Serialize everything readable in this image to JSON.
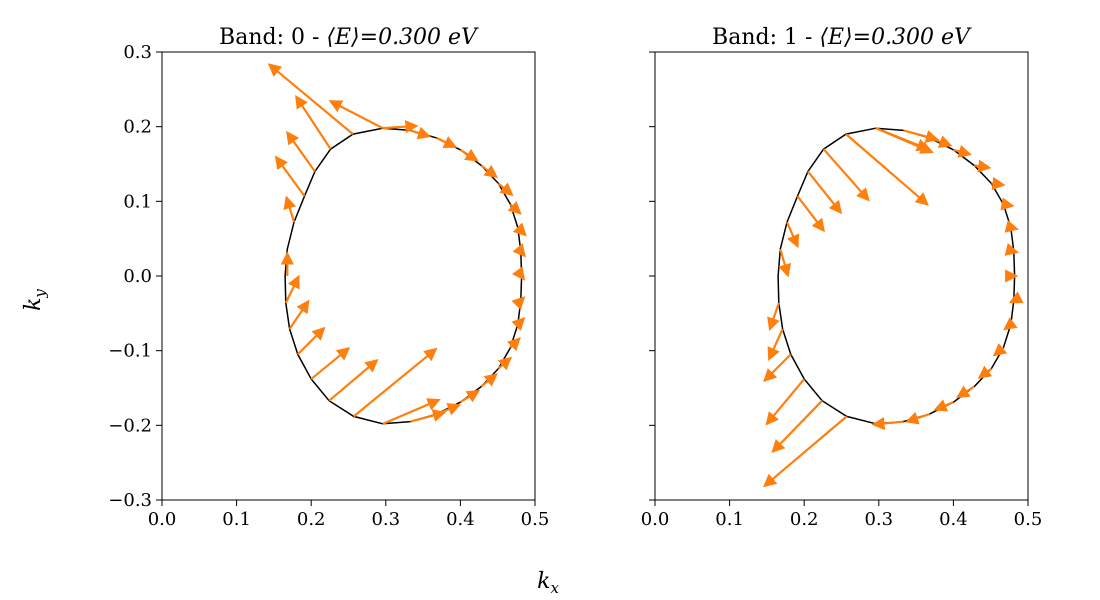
{
  "chart_data": {
    "type": "quiver",
    "xlabel": "k",
    "xlabel_sub": "x",
    "ylabel": "k",
    "ylabel_sub": "y",
    "xlim": [
      0.0,
      0.5
    ],
    "ylim": [
      -0.3,
      0.3
    ],
    "x_ticks": [
      "0.0",
      "0.1",
      "0.2",
      "0.3",
      "0.4",
      "0.5"
    ],
    "y_ticks": [
      "0.3",
      "0.2",
      "0.1",
      "0.0",
      "−0.1",
      "−0.2",
      "−0.3"
    ],
    "y_tick_values": [
      0.3,
      0.2,
      0.1,
      0.0,
      -0.1,
      -0.2,
      -0.3
    ],
    "x_tick_values": [
      0.0,
      0.1,
      0.2,
      0.3,
      0.4,
      0.5
    ],
    "grid": false,
    "contour_color": "#000000",
    "arrow_color": "#ff7f0e",
    "contour": [
      [
        0.296,
        0.198
      ],
      [
        0.333,
        0.195
      ],
      [
        0.368,
        0.185
      ],
      [
        0.4,
        0.169
      ],
      [
        0.428,
        0.148
      ],
      [
        0.451,
        0.124
      ],
      [
        0.467,
        0.096
      ],
      [
        0.477,
        0.065
      ],
      [
        0.481,
        0.033
      ],
      [
        0.482,
        0.0
      ],
      [
        0.481,
        -0.033
      ],
      [
        0.477,
        -0.065
      ],
      [
        0.467,
        -0.096
      ],
      [
        0.451,
        -0.124
      ],
      [
        0.428,
        -0.148
      ],
      [
        0.4,
        -0.169
      ],
      [
        0.368,
        -0.185
      ],
      [
        0.333,
        -0.195
      ],
      [
        0.296,
        -0.198
      ],
      [
        0.257,
        -0.188
      ],
      [
        0.224,
        -0.167
      ],
      [
        0.2,
        -0.138
      ],
      [
        0.182,
        -0.105
      ],
      [
        0.171,
        -0.071
      ],
      [
        0.166,
        -0.036
      ],
      [
        0.165,
        0.0
      ],
      [
        0.168,
        0.036
      ],
      [
        0.177,
        0.072
      ],
      [
        0.191,
        0.107
      ],
      [
        0.205,
        0.14
      ],
      [
        0.226,
        0.17
      ],
      [
        0.256,
        0.19
      ]
    ],
    "panels": [
      {
        "title_prefix": "Band: 0 - ",
        "title_energy": "⟨E⟩=0.300 eV",
        "arrows": [
          [
            0.296,
            0.198,
            0.045,
            0.003
          ],
          [
            0.333,
            0.195,
            0.025,
            -0.008
          ],
          [
            0.368,
            0.185,
            0.025,
            -0.012
          ],
          [
            0.4,
            0.169,
            0.022,
            -0.014
          ],
          [
            0.428,
            0.148,
            0.02,
            -0.015
          ],
          [
            0.451,
            0.124,
            0.018,
            -0.015
          ],
          [
            0.467,
            0.096,
            0.013,
            -0.012
          ],
          [
            0.477,
            0.065,
            0.01,
            -0.01
          ],
          [
            0.481,
            0.033,
            0.005,
            -0.006
          ],
          [
            0.482,
            0.0,
            0.003,
            -0.004
          ],
          [
            0.481,
            -0.033,
            0.004,
            0.004
          ],
          [
            0.477,
            -0.065,
            0.008,
            0.008
          ],
          [
            0.467,
            -0.096,
            0.012,
            0.012
          ],
          [
            0.451,
            -0.124,
            0.016,
            0.014
          ],
          [
            0.428,
            -0.148,
            0.02,
            0.016
          ],
          [
            0.4,
            -0.169,
            0.024,
            0.015
          ],
          [
            0.368,
            -0.185,
            0.03,
            0.012
          ],
          [
            0.333,
            -0.195,
            0.045,
            0.012
          ],
          [
            0.296,
            -0.198,
            0.075,
            0.032
          ],
          [
            0.257,
            -0.188,
            0.11,
            0.09
          ],
          [
            0.224,
            -0.167,
            0.064,
            0.054
          ],
          [
            0.2,
            -0.138,
            0.05,
            0.041
          ],
          [
            0.182,
            -0.105,
            0.035,
            0.035
          ],
          [
            0.171,
            -0.071,
            0.025,
            0.037
          ],
          [
            0.166,
            -0.036,
            0.017,
            0.035
          ],
          [
            0.168,
            0.0,
            0.0,
            0.03
          ],
          [
            0.177,
            0.072,
            -0.01,
            0.033
          ],
          [
            0.191,
            0.107,
            -0.038,
            0.052
          ],
          [
            0.205,
            0.14,
            -0.037,
            0.052
          ],
          [
            0.226,
            0.17,
            -0.046,
            0.07
          ],
          [
            0.256,
            0.19,
            -0.112,
            0.093
          ],
          [
            0.296,
            0.198,
            -0.07,
            0.036
          ]
        ]
      },
      {
        "title_prefix": "Band: 1 - ",
        "title_energy": "⟨E⟩=0.300 eV",
        "arrows": [
          [
            0.296,
            0.198,
            0.075,
            -0.032
          ],
          [
            0.333,
            0.195,
            0.045,
            -0.012
          ],
          [
            0.368,
            0.185,
            0.028,
            -0.01
          ],
          [
            0.4,
            0.169,
            0.022,
            -0.006
          ],
          [
            0.428,
            0.148,
            0.02,
            -0.003
          ],
          [
            0.451,
            0.124,
            0.016,
            -0.002
          ],
          [
            0.467,
            0.096,
            0.012,
            -0.002
          ],
          [
            0.477,
            0.065,
            0.008,
            -0.002
          ],
          [
            0.481,
            0.033,
            0.004,
            -0.001
          ],
          [
            0.482,
            0.0,
            0.002,
            0.0
          ],
          [
            0.481,
            -0.033,
            -0.004,
            -0.002
          ],
          [
            0.477,
            -0.065,
            -0.008,
            -0.006
          ],
          [
            0.467,
            -0.096,
            -0.012,
            -0.01
          ],
          [
            0.451,
            -0.124,
            -0.016,
            -0.012
          ],
          [
            0.428,
            -0.148,
            -0.022,
            -0.014
          ],
          [
            0.4,
            -0.169,
            -0.024,
            -0.01
          ],
          [
            0.368,
            -0.185,
            -0.03,
            -0.01
          ],
          [
            0.333,
            -0.195,
            -0.04,
            -0.004
          ],
          [
            0.257,
            -0.188,
            -0.11,
            -0.093
          ],
          [
            0.224,
            -0.167,
            -0.066,
            -0.068
          ],
          [
            0.2,
            -0.138,
            -0.05,
            -0.06
          ],
          [
            0.182,
            -0.105,
            -0.035,
            -0.035
          ],
          [
            0.171,
            -0.071,
            -0.018,
            -0.04
          ],
          [
            0.166,
            -0.036,
            -0.012,
            -0.035
          ],
          [
            0.168,
            0.036,
            0.01,
            -0.035
          ],
          [
            0.177,
            0.072,
            0.014,
            -0.032
          ],
          [
            0.191,
            0.107,
            0.035,
            -0.046
          ],
          [
            0.205,
            0.14,
            0.044,
            -0.055
          ],
          [
            0.226,
            0.17,
            0.06,
            -0.068
          ],
          [
            0.256,
            0.19,
            0.109,
            -0.094
          ],
          [
            0.296,
            0.198,
            0.07,
            -0.028
          ]
        ]
      }
    ]
  }
}
